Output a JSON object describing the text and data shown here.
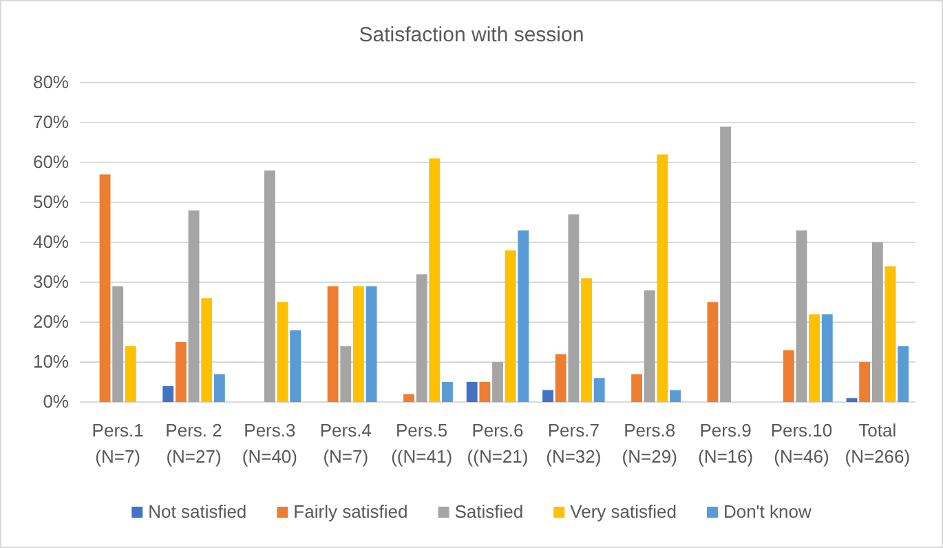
{
  "chart_data": {
    "type": "bar",
    "title": "Satisfaction with session",
    "categories": [
      "Pers.1\n(N=7)",
      "Pers. 2\n(N=27)",
      "Pers.3\n(N=40)",
      "Pers.4\n(N=7)",
      "Pers.5\n((N=41)",
      "Pers.6\n((N=21)",
      "Pers.7\n(N=32)",
      "Pers.8\n(N=29)",
      "Pers.9\n(N=16)",
      "Pers.10\n(N=46)",
      "Total\n(N=266)"
    ],
    "series": [
      {
        "name": "Not satisfied",
        "color": "#4472c4",
        "values": [
          0,
          4,
          0,
          0,
          0,
          5,
          3,
          0,
          0,
          0,
          1
        ]
      },
      {
        "name": "Fairly satisfied",
        "color": "#ed7d31",
        "values": [
          57,
          15,
          0,
          29,
          2,
          5,
          12,
          7,
          25,
          13,
          10
        ]
      },
      {
        "name": "Satisfied",
        "color": "#a5a5a5",
        "values": [
          29,
          48,
          58,
          14,
          32,
          10,
          47,
          28,
          69,
          43,
          40
        ]
      },
      {
        "name": "Very satisfied",
        "color": "#ffc000",
        "values": [
          14,
          26,
          25,
          29,
          61,
          38,
          31,
          62,
          0,
          22,
          34
        ]
      },
      {
        "name": "Don't know",
        "color": "#5b9bd5",
        "values": [
          0,
          7,
          18,
          29,
          5,
          43,
          6,
          3,
          0,
          22,
          14
        ]
      }
    ],
    "ylim": [
      0,
      80
    ],
    "yticks": [
      {
        "value": 0,
        "label": "0%"
      },
      {
        "value": 10,
        "label": "10%"
      },
      {
        "value": 20,
        "label": "20%"
      },
      {
        "value": 30,
        "label": "30%"
      },
      {
        "value": 40,
        "label": "40%"
      },
      {
        "value": 50,
        "label": "50%"
      },
      {
        "value": 60,
        "label": "60%"
      },
      {
        "value": 70,
        "label": "70%"
      },
      {
        "value": 80,
        "label": "80%"
      }
    ],
    "grid": "y",
    "legend": "bottom"
  }
}
